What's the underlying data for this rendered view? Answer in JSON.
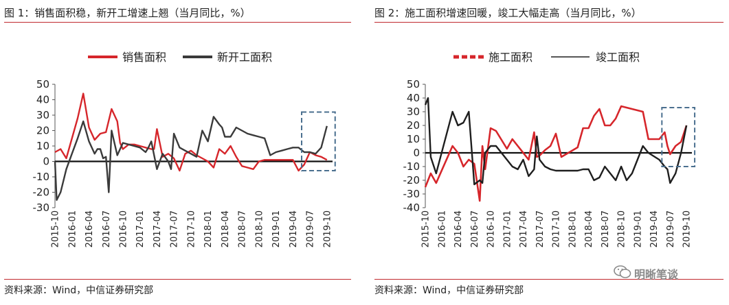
{
  "colors": {
    "red": "#d6262b",
    "dark": "#3a3a3a",
    "box": "#4a6f8f",
    "rule": "#c0282d"
  },
  "watermark": {
    "text": "明晰笔谈",
    "icon": "wechat-icon"
  },
  "charts": [
    {
      "title": "图 1：销售面积稳，新开工增速上翘（当月同比，%）",
      "source": "资料来源：Wind，中信证券研究部",
      "chart_data": {
        "type": "line",
        "ylim": [
          -30,
          50
        ],
        "yticks": [
          -30,
          -20,
          -10,
          0,
          10,
          20,
          30,
          40,
          50
        ],
        "xlim": [
          0,
          49
        ],
        "xtick_labels": [
          "2015-10",
          "2016-01",
          "2016-04",
          "2016-07",
          "2016-10",
          "2017-01",
          "2017-04",
          "2017-07",
          "2017-10",
          "2018-01",
          "2018-04",
          "2018-07",
          "2018-10",
          "2019-01",
          "2019-04",
          "2019-07",
          "2019-10"
        ],
        "xtick_positions": [
          0,
          3,
          6,
          9,
          12,
          15,
          18,
          21,
          24,
          27,
          30,
          33,
          36,
          39,
          42,
          45,
          48
        ],
        "legend": [
          "销售面积",
          "新开工面积"
        ],
        "highlight_box": [
          45,
          48,
          -6,
          32
        ],
        "series": [
          {
            "name": "销售面积",
            "style": "solid",
            "color": "#d6262b",
            "x": [
              0,
              1,
              2,
              4,
              5,
              6,
              7,
              8,
              9,
              10,
              11,
              11.5,
              12,
              13,
              14,
              15,
              16,
              17,
              17.5,
              18,
              19,
              20,
              21,
              22,
              23,
              24,
              25,
              26,
              27,
              28,
              29,
              30,
              31,
              32,
              33,
              34,
              35,
              36,
              37,
              38,
              39,
              40,
              41,
              42,
              43,
              44,
              45,
              46,
              47,
              48
            ],
            "y": [
              6,
              8,
              2,
              28,
              44,
              22,
              14,
              18,
              19,
              34,
              26,
              12,
              8,
              11,
              11,
              10,
              9,
              8,
              8,
              21,
              3,
              5,
              2,
              -6,
              5,
              7,
              4,
              2,
              0,
              -4,
              8,
              5,
              10,
              3,
              -3,
              -4,
              -5,
              0,
              1,
              1,
              1,
              1,
              1,
              1,
              -6,
              -2,
              6,
              4,
              3,
              1
            ]
          },
          {
            "name": "新开工面积",
            "style": "solid",
            "color": "#3a3a3a",
            "x": [
              0,
              0.3,
              1,
              2,
              3,
              4,
              5,
              6,
              7,
              7.5,
              8,
              8.5,
              9,
              9.5,
              10,
              11,
              12,
              13,
              14,
              15,
              16,
              16.5,
              17,
              18,
              18.5,
              19,
              20,
              20.5,
              21,
              22,
              23,
              24,
              25,
              26,
              27,
              28,
              29,
              29.5,
              30,
              31,
              32,
              33,
              34,
              35,
              36,
              37,
              38,
              39,
              40,
              41,
              42,
              43,
              44,
              45,
              46,
              47,
              48
            ],
            "y": [
              0,
              -25,
              -20,
              -5,
              5,
              15,
              26,
              13,
              5,
              8,
              8,
              2,
              3,
              -20,
              20,
              4,
              12,
              11,
              10,
              9,
              6,
              9,
              13,
              -5,
              0,
              5,
              0,
              -5,
              18,
              9,
              7,
              5,
              3,
              20,
              13,
              29,
              24,
              22,
              16,
              16,
              22,
              20,
              18,
              17,
              16,
              15,
              4,
              6,
              7,
              8,
              9,
              9,
              6,
              6,
              5,
              9,
              23
            ]
          }
        ]
      }
    },
    {
      "title": "图 2：施工面积增速回暖，竣工大幅走高（当月同比，%）",
      "source": "资料来源：Wind，中信证券研究部",
      "chart_data": {
        "type": "line",
        "ylim": [
          -40,
          50
        ],
        "yticks": [
          -40,
          -30,
          -20,
          -10,
          0,
          10,
          20,
          30,
          40,
          50
        ],
        "xlim": [
          0,
          49
        ],
        "xtick_labels": [
          "2015-10",
          "2016-01",
          "2016-04",
          "2016-07",
          "2016-10",
          "2017-01",
          "2017-04",
          "2017-07",
          "2017-10",
          "2018-01",
          "2018-04",
          "2018-07",
          "2018-10",
          "2019-01",
          "2019-04",
          "2019-07",
          "2019-10"
        ],
        "xtick_positions": [
          0,
          3,
          6,
          9,
          12,
          15,
          18,
          21,
          24,
          27,
          30,
          33,
          36,
          39,
          42,
          45,
          48
        ],
        "legend": [
          "施工面积",
          "竣工面积"
        ],
        "highlight_box": [
          45,
          48,
          -10,
          33
        ],
        "series": [
          {
            "name": "施工面积",
            "style": "dashed",
            "color": "#d6262b",
            "x": [
              0,
              0.5,
              1,
              2,
              5,
              6,
              7,
              8,
              9,
              10,
              10.5,
              11,
              12,
              13,
              15,
              16,
              19,
              20,
              20.5,
              21,
              22,
              23,
              24,
              25,
              28,
              29,
              30,
              31,
              32,
              33,
              34,
              35,
              36,
              37,
              38,
              40,
              41,
              43,
              44,
              44.5,
              45,
              46,
              47,
              48
            ],
            "y": [
              -25,
              -20,
              -15,
              -22,
              5,
              0,
              -10,
              -5,
              -8,
              -35,
              5,
              -12,
              18,
              16,
              3,
              10,
              -5,
              15,
              -3,
              -2,
              2,
              5,
              14,
              -3,
              4,
              18,
              18,
              27,
              32,
              20,
              20,
              25,
              34,
              33,
              32,
              30,
              10,
              10,
              15,
              5,
              -1,
              5,
              8,
              20
            ]
          },
          {
            "name": "竣工面积",
            "style": "solid",
            "color": "#1e1e1e",
            "x": [
              0,
              0.5,
              1,
              2,
              5,
              6,
              7,
              8,
              9,
              10,
              10.5,
              11,
              12,
              13,
              15,
              16,
              17,
              18,
              19,
              20,
              20.5,
              21,
              22,
              23,
              24,
              25,
              28,
              29,
              30,
              31,
              32,
              33,
              34,
              35,
              36,
              37,
              38,
              40,
              41,
              43,
              44,
              44.5,
              45,
              46,
              47,
              48
            ],
            "y": [
              35,
              40,
              -3,
              -15,
              30,
              20,
              22,
              30,
              -23,
              -20,
              -22,
              0,
              5,
              5,
              -5,
              -10,
              -12,
              -5,
              -17,
              -12,
              12,
              -5,
              -10,
              -12,
              -13,
              -13,
              -13,
              -12,
              -12,
              -20,
              -18,
              -10,
              -15,
              -20,
              -10,
              -20,
              -15,
              5,
              0,
              -5,
              -10,
              -12,
              -22,
              -15,
              0,
              20
            ]
          }
        ]
      }
    }
  ]
}
